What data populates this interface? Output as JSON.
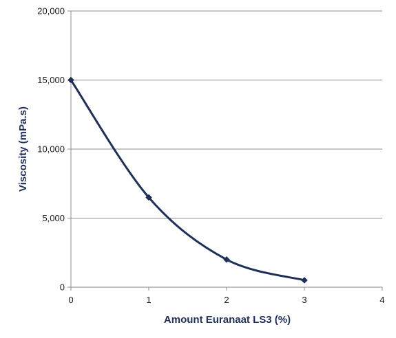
{
  "chart_data": {
    "type": "line",
    "title": "",
    "xlabel": "Amount Euranaat LS3 (%)",
    "ylabel": "Viscosity (mPa.s)",
    "xlim": [
      0,
      4
    ],
    "ylim": [
      0,
      20000
    ],
    "x_ticks": [
      0,
      1,
      2,
      3,
      4
    ],
    "x_tick_labels": [
      "0",
      "1",
      "2",
      "3",
      "4"
    ],
    "y_ticks": [
      0,
      5000,
      10000,
      15000,
      20000
    ],
    "y_tick_labels": [
      "0",
      "5,000",
      "10,000",
      "15,000",
      "20,000"
    ],
    "grid": "horizontal",
    "legend": "none",
    "smooth": true,
    "series": [
      {
        "x": [
          0,
          1,
          2,
          3
        ],
        "y": [
          15000,
          6500,
          2000,
          500
        ],
        "color": "#1f2f5c",
        "marker": "diamond"
      }
    ],
    "colors": {
      "line": "#1f2f5c",
      "axis_title": "#1f2f5c",
      "grid": "#8c8c8c",
      "axis": "#8c8c8c"
    }
  }
}
